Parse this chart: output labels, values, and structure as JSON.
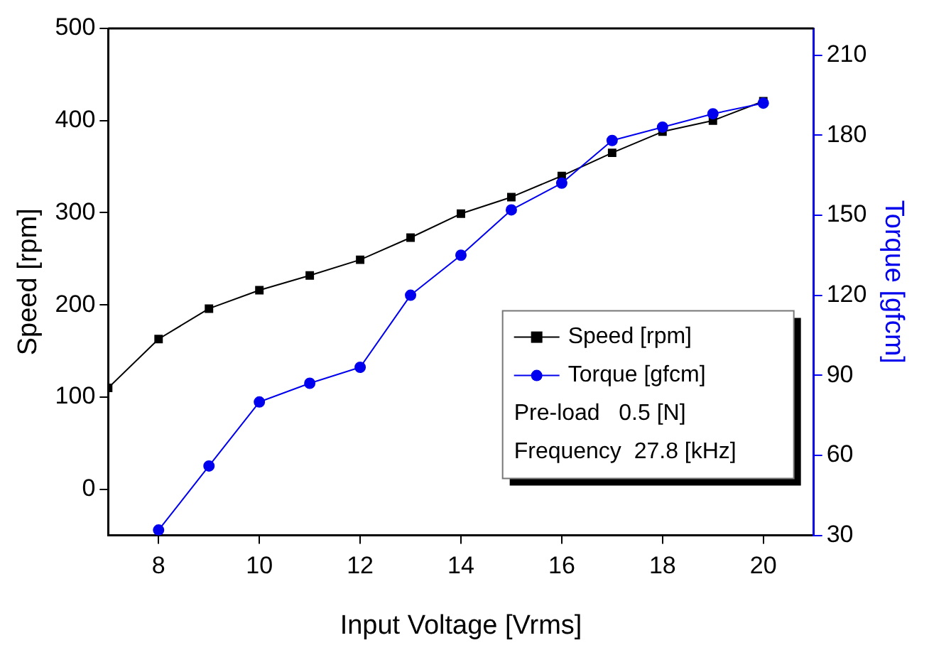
{
  "chart_data": {
    "type": "line",
    "xlabel": "Input Voltage [Vrms]",
    "ylabel": "Speed [rpm]",
    "y2label": "Torque [gfcm]",
    "series": [
      {
        "name": "Speed [rpm]",
        "color": "#000000",
        "marker": "square",
        "x": [
          7,
          8,
          9,
          10,
          11,
          12,
          13,
          14,
          15,
          16,
          17,
          18,
          19,
          20
        ],
        "values": [
          110,
          163,
          196,
          216,
          232,
          249,
          273,
          299,
          317,
          340,
          365,
          388,
          400,
          421
        ]
      },
      {
        "name": "Torque [gfcm]",
        "color": "#0000ee",
        "marker": "circle",
        "axis": "y2",
        "x": [
          8,
          9,
          10,
          11,
          12,
          13,
          14,
          15,
          16,
          17,
          18,
          19,
          20
        ],
        "values": [
          32,
          56,
          80,
          87,
          93,
          120,
          135,
          152,
          162,
          178,
          183,
          188,
          192
        ]
      }
    ],
    "xlim": [
      7,
      21
    ],
    "xticks": [
      8,
      10,
      12,
      14,
      16,
      18,
      20
    ],
    "ylim": [
      -50,
      500
    ],
    "yticks": [
      0,
      100,
      200,
      300,
      400,
      500
    ],
    "y2lim": [
      30,
      220
    ],
    "y2ticks": [
      30,
      60,
      90,
      120,
      150,
      180,
      210
    ],
    "legend": "bottom right",
    "grid": false,
    "annotations": [
      "Pre-load   0.5 [N]",
      "Frequency  27.8 [kHz]"
    ]
  }
}
